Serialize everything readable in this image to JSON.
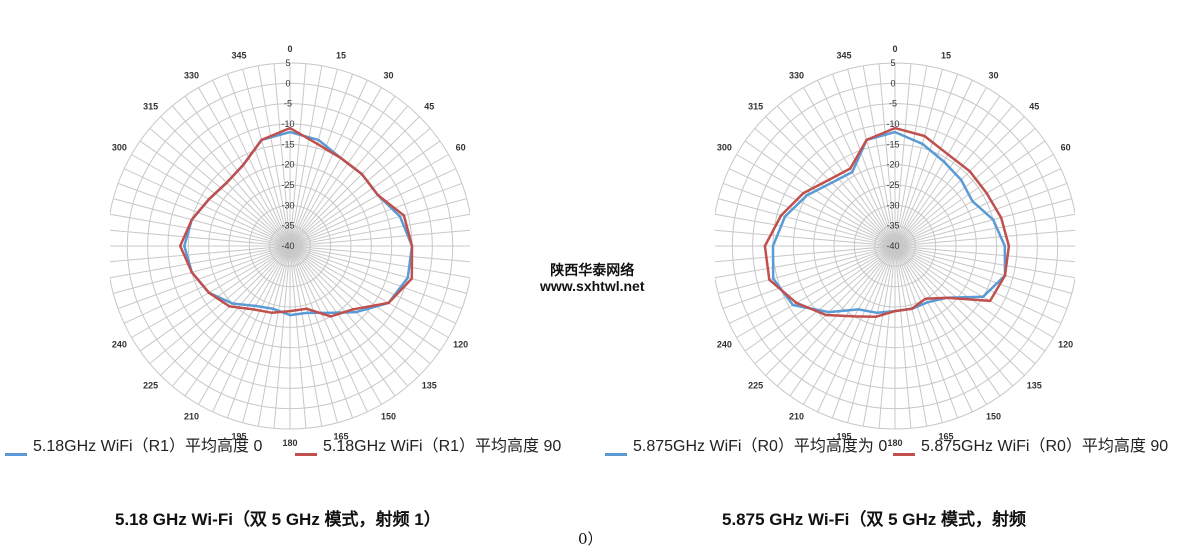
{
  "chart_data": [
    {
      "type": "radar",
      "radial_ticks": [
        5,
        0,
        -5,
        -10,
        -15,
        -20,
        -25,
        -30,
        -35,
        -40
      ],
      "rlim": [
        -40,
        5
      ],
      "angles": [
        0,
        15,
        30,
        45,
        60,
        75,
        90,
        105,
        120,
        135,
        150,
        165,
        180,
        195,
        210,
        225,
        240,
        255,
        270,
        285,
        300,
        315,
        330,
        345
      ],
      "angle_labels": [
        "0",
        "15",
        "30",
        "45",
        "60",
        "75",
        "90",
        "105",
        "120",
        "135",
        "150",
        "165",
        "180",
        "195",
        "210",
        "225",
        "240",
        "255",
        "270",
        "285",
        "300",
        "315",
        "330",
        "345"
      ],
      "grid": true,
      "legend_position": "bottom",
      "series": [
        {
          "name": "5.18GHz WiFi（R1）平均高度 0",
          "color": "#5b9bd5",
          "values": [
            -12,
            -13,
            -15,
            -15,
            -15,
            -12,
            -10,
            -10,
            -12,
            -17,
            -21,
            -23,
            -23,
            -24,
            -23,
            -20,
            -17,
            -15,
            -14,
            -15,
            -17,
            -18,
            -17,
            -13
          ]
        },
        {
          "name": "5.18GHz WiFi（R1）平均高度 90",
          "color": "#c0504d",
          "values": [
            -11,
            -14,
            -15,
            -15,
            -15,
            -11,
            -10,
            -9,
            -12,
            -18,
            -20,
            -24,
            -24,
            -23,
            -22,
            -19,
            -17,
            -15,
            -13,
            -15,
            -17,
            -18,
            -17,
            -13
          ]
        }
      ]
    },
    {
      "type": "radar",
      "radial_ticks": [
        5,
        0,
        -5,
        -10,
        -15,
        -20,
        -25,
        -30,
        -35,
        -40
      ],
      "rlim": [
        -40,
        5
      ],
      "angles": [
        0,
        15,
        30,
        45,
        60,
        75,
        90,
        105,
        120,
        135,
        150,
        165,
        180,
        195,
        210,
        225,
        240,
        255,
        270,
        285,
        300,
        315,
        330,
        345
      ],
      "angle_labels": [
        "0",
        "15",
        "30",
        "45",
        "60",
        "75",
        "90",
        "105",
        "120",
        "135",
        "150",
        "165",
        "180",
        "195",
        "210",
        "225",
        "240",
        "255",
        "270",
        "285",
        "300",
        "315",
        "330",
        "345"
      ],
      "grid": true,
      "legend_position": "bottom",
      "series": [
        {
          "name": "5.875GHz WiFi（R0）平均高度为 0",
          "color": "#5b9bd5",
          "values": [
            -12,
            -14,
            -16,
            -17,
            -18,
            -15,
            -13,
            -12,
            -15,
            -22,
            -24,
            -24,
            -24,
            -23,
            -22,
            -17,
            -11,
            -9,
            -10,
            -12,
            -15,
            -18,
            -19,
            -13
          ]
        },
        {
          "name": "5.875GHz WiFi（R0）平均高度 90",
          "color": "#c0504d",
          "values": [
            -11,
            -12,
            -14,
            -14,
            -14,
            -13,
            -12,
            -12,
            -13,
            -22,
            -25,
            -24,
            -24,
            -22,
            -20,
            -16,
            -12,
            -8,
            -8,
            -11,
            -14,
            -17,
            -18,
            -13
          ]
        }
      ]
    }
  ],
  "watermark": {
    "line1": "陕西华泰网络",
    "line2": "www.sxhtwl.net"
  },
  "captions": {
    "left": "5.18 GHz Wi-Fi（双 5 GHz 模式，射频 1）",
    "right": "5.875 GHz Wi-Fi（双 5 GHz 模式，射频",
    "right_tail": "0）"
  }
}
